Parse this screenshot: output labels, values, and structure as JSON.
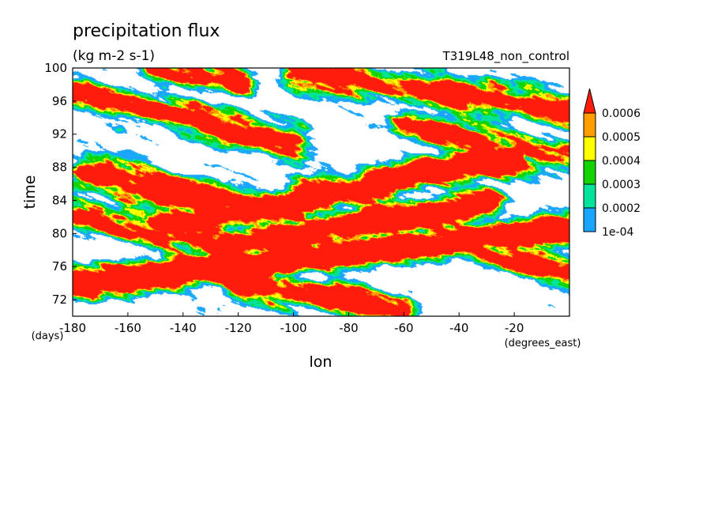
{
  "chart_data": {
    "type": "heatmap",
    "title": "precipitation flux",
    "units": "(kg m-2 s-1)",
    "run_label": "T319L48_non_control",
    "xlabel": "lon",
    "ylabel": "time",
    "x_units": "(degrees_east)",
    "y_units": "(days)",
    "xlim": [
      -180,
      0
    ],
    "ylim": [
      70,
      100
    ],
    "x_ticks": [
      -180,
      -160,
      -140,
      -120,
      -100,
      -80,
      -60,
      -40,
      -20
    ],
    "x_tick_labels": [
      "-180",
      "-160",
      "-140",
      "-120",
      "-100",
      "-80",
      "-60",
      "-40",
      "-20"
    ],
    "y_ticks": [
      72,
      76,
      80,
      84,
      88,
      92,
      96,
      100
    ],
    "y_tick_labels": [
      "72",
      "76",
      "80",
      "84",
      "88",
      "92",
      "96",
      "100"
    ],
    "colorbar": {
      "levels": [
        0.0001,
        0.0002,
        0.0003,
        0.0004,
        0.0005,
        0.0006
      ],
      "level_labels": [
        "1e-04",
        "0.0002",
        "0.0003",
        "0.0004",
        "0.0005",
        "0.0006"
      ],
      "colors": [
        "#1aa5ff",
        "#00e39a",
        "#13d400",
        "#ffff00",
        "#ff9c00",
        "#ff1c0c"
      ],
      "extend": "max"
    },
    "rain_bands": [
      {
        "x0": -180,
        "y0": 74.0,
        "x1": 0,
        "y1": 80.5,
        "strength": 1.0
      },
      {
        "x0": -125,
        "y0": 78.5,
        "x1": -30,
        "y1": 83.5,
        "strength": 1.0
      },
      {
        "x0": -150,
        "y0": 80.5,
        "x1": -20,
        "y1": 89.5,
        "strength": 1.0
      },
      {
        "x0": -175,
        "y0": 87.0,
        "x1": -100,
        "y1": 82.5,
        "strength": 0.9
      },
      {
        "x0": -180,
        "y0": 82.0,
        "x1": -130,
        "y1": 79.0,
        "strength": 0.85
      },
      {
        "x0": -180,
        "y0": 97.0,
        "x1": -100,
        "y1": 91.0,
        "strength": 0.9
      },
      {
        "x0": -100,
        "y0": 99.5,
        "x1": 0,
        "y1": 95.0,
        "strength": 0.85
      },
      {
        "x0": -150,
        "y0": 100.0,
        "x1": -120,
        "y1": 98.5,
        "strength": 0.8
      },
      {
        "x0": -60,
        "y0": 93.0,
        "x1": 0,
        "y1": 89.0,
        "strength": 0.75
      },
      {
        "x0": -40,
        "y0": 79.0,
        "x1": 0,
        "y1": 75.0,
        "strength": 0.85
      },
      {
        "x0": -120,
        "y0": 74.0,
        "x1": -60,
        "y1": 71.0,
        "strength": 0.9
      }
    ]
  }
}
